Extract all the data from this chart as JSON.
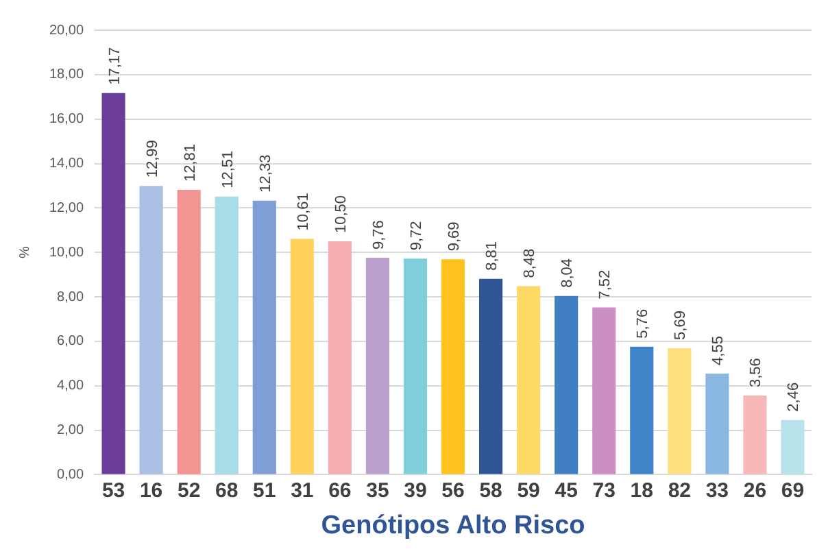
{
  "chart_data": {
    "type": "bar",
    "xlabel": "Genótipos Alto Risco",
    "ylabel": "%",
    "categories": [
      "53",
      "16",
      "52",
      "68",
      "51",
      "31",
      "66",
      "35",
      "39",
      "56",
      "58",
      "59",
      "45",
      "73",
      "18",
      "82",
      "33",
      "26",
      "69"
    ],
    "values": [
      17.17,
      12.99,
      12.81,
      12.51,
      12.33,
      10.61,
      10.5,
      9.76,
      9.72,
      9.69,
      8.81,
      8.48,
      8.04,
      7.52,
      5.76,
      5.69,
      4.55,
      3.56,
      2.46
    ],
    "value_labels": [
      "17,17",
      "12,99",
      "12,81",
      "12,51",
      "12,33",
      "10,61",
      "10,50",
      "9,76",
      "9,72",
      "9,69",
      "8,81",
      "8,48",
      "8,04",
      "7,52",
      "5,76",
      "5,69",
      "4,55",
      "3,56",
      "2,46"
    ],
    "colors": [
      "#6a3d9a",
      "#a9bfe3",
      "#f29593",
      "#a8dde7",
      "#7f9fd4",
      "#ffd05a",
      "#f7adb0",
      "#b9a0cf",
      "#7fd0dc",
      "#ffc21f",
      "#2f5597",
      "#ffd966",
      "#3f7fc2",
      "#cc8fc4",
      "#3f83c8",
      "#ffe080",
      "#8ab8e3",
      "#f7b8b8",
      "#b8e3ec"
    ],
    "ylim": [
      0,
      20
    ],
    "yticks": [
      {
        "value": 0,
        "label": "0,00"
      },
      {
        "value": 2,
        "label": "2,00"
      },
      {
        "value": 4,
        "label": "4,00"
      },
      {
        "value": 6,
        "label": "6,00"
      },
      {
        "value": 8,
        "label": "8,00"
      },
      {
        "value": 10,
        "label": "10,00"
      },
      {
        "value": 12,
        "label": "12,00"
      },
      {
        "value": 14,
        "label": "14,00"
      },
      {
        "value": 16,
        "label": "16,00"
      },
      {
        "value": 18,
        "label": "18,00"
      },
      {
        "value": 20,
        "label": "20,00"
      }
    ],
    "grid": "y",
    "legend": false
  }
}
